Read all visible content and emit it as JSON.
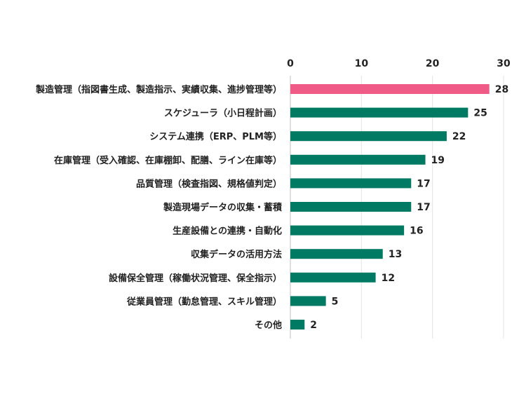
{
  "chart_data": {
    "type": "bar",
    "orientation": "horizontal",
    "title": "",
    "xlabel": "",
    "ylabel": "",
    "xlim": [
      0,
      30
    ],
    "x_ticks": [
      0,
      10,
      20,
      30
    ],
    "x_axis_position": "top",
    "grid": true,
    "legend": "none",
    "categories": [
      "製造管理（指図書生成、製造指示、実績収集、進捗管理等）",
      "スケジューラ（小日程計画）",
      "システム連携（ERP、PLM等）",
      "在庫管理（受入確認、在庫棚卸、配膳、ライン在庫等）",
      "品質管理（検査指図、規格値判定）",
      "製造現場データの収集・蓄積",
      "生産設備との連携・自動化",
      "収集データの活用方法",
      "設備保全管理（稼働状況管理、保全指示）",
      "従業員管理（勤怠管理、スキル管理）",
      "その他"
    ],
    "values": [
      28,
      25,
      22,
      19,
      17,
      17,
      16,
      13,
      12,
      5,
      2
    ],
    "highlight_index": 0,
    "colors": {
      "default_bar": "#007a63",
      "highlight_bar": "#f05a87"
    }
  }
}
